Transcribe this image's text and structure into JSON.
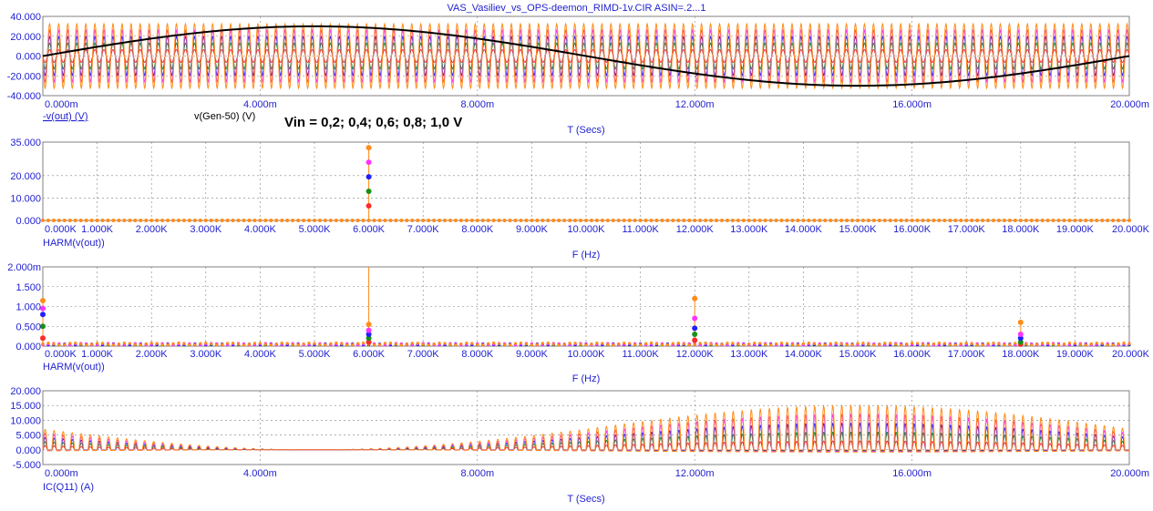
{
  "title": "VAS_Vasiliev_vs_OPS-deemon_RIMD-1v.CIR ASIN=.2...1",
  "annotation": "Vin = 0,2; 0,4; 0,6; 0,8; 1,0 V",
  "colors": {
    "axis_text": "#1f1fd0",
    "grid": "#808080",
    "frame": "#808080",
    "series": [
      "#ff2a2a",
      "#1a8f1a",
      "#2020ff",
      "#ff33ff",
      "#ff8c1a"
    ],
    "generator": "#000000"
  },
  "chart_data": [
    {
      "id": "transient_vout",
      "type": "line",
      "xlabel": "T (Secs)",
      "trace_labels": [
        "-v(out) (V)",
        "v(Gen-50) (V)"
      ],
      "xlim": [
        0,
        0.02
      ],
      "ylim": [
        -40,
        40
      ],
      "x_ticks": [
        "0.000m",
        "4.000m",
        "8.000m",
        "12.000m",
        "16.000m",
        "20.000m"
      ],
      "y_ticks": [
        "-40.000",
        "-20.000",
        "0.000",
        "20.000",
        "40.000"
      ],
      "grid": true,
      "series_vin": [
        0.2,
        0.4,
        0.6,
        0.8,
        1.0
      ],
      "carrier_hz": 6000,
      "output_peak_amplitudes": [
        6.5,
        13,
        19.5,
        26,
        32.5
      ],
      "generator": {
        "frequency_hz": 50,
        "amplitude": 30
      }
    },
    {
      "id": "harm_vout_full",
      "type": "line",
      "xlabel": "F (Hz)",
      "trace_labels": [
        "HARM(v(out))"
      ],
      "xlim": [
        0,
        20000
      ],
      "ylim": [
        0,
        35
      ],
      "x_ticks": [
        "0.000K",
        "1.000K",
        "2.000K",
        "3.000K",
        "4.000K",
        "5.000K",
        "6.000K",
        "7.000K",
        "8.000K",
        "9.000K",
        "10.000K",
        "11.000K",
        "12.000K",
        "13.000K",
        "14.000K",
        "15.000K",
        "16.000K",
        "17.000K",
        "18.000K",
        "19.000K",
        "20.000K"
      ],
      "y_ticks": [
        "0.000",
        "10.000",
        "20.000",
        "35.000"
      ],
      "grid": true,
      "peaks": [
        {
          "f": 6000,
          "values": [
            6.5,
            13,
            19.5,
            26,
            32.5
          ]
        }
      ]
    },
    {
      "id": "harm_vout_zoom",
      "type": "line",
      "xlabel": "F (Hz)",
      "trace_labels": [
        "HARM(v(out))"
      ],
      "xlim": [
        0,
        20000
      ],
      "ylim": [
        0,
        2
      ],
      "x_ticks": [
        "0.000K",
        "1.000K",
        "2.000K",
        "3.000K",
        "4.000K",
        "5.000K",
        "6.000K",
        "7.000K",
        "8.000K",
        "9.000K",
        "10.000K",
        "11.000K",
        "12.000K",
        "13.000K",
        "14.000K",
        "15.000K",
        "16.000K",
        "17.000K",
        "18.000K",
        "19.000K",
        "20.000K"
      ],
      "y_ticks": [
        "0.000",
        "0.500",
        "1.000",
        "1.500",
        "2.000m"
      ],
      "grid": true,
      "peaks": [
        {
          "f": 0,
          "values": [
            0.2,
            0.5,
            0.8,
            0.95,
            1.15
          ]
        },
        {
          "f": 6000,
          "values": [
            0.1,
            0.2,
            0.3,
            0.4,
            0.55
          ]
        },
        {
          "f": 12000,
          "values": [
            0.15,
            0.3,
            0.45,
            0.7,
            1.2
          ]
        },
        {
          "f": 18000,
          "values": [
            0.05,
            0.1,
            0.2,
            0.3,
            0.6
          ]
        }
      ]
    },
    {
      "id": "ic_q11",
      "type": "line",
      "xlabel": "T (Secs)",
      "trace_labels": [
        "IC(Q11) (A)"
      ],
      "xlim": [
        0,
        0.02
      ],
      "ylim": [
        -5,
        20
      ],
      "x_ticks": [
        "0.000m",
        "4.000m",
        "8.000m",
        "12.000m",
        "16.000m",
        "20.000m"
      ],
      "y_ticks": [
        "-5.000",
        "0.000",
        "5.000",
        "10.000",
        "15.000",
        "20.000"
      ],
      "grid": true,
      "envelope_peak_max": 15,
      "envelope_start": 7
    }
  ]
}
